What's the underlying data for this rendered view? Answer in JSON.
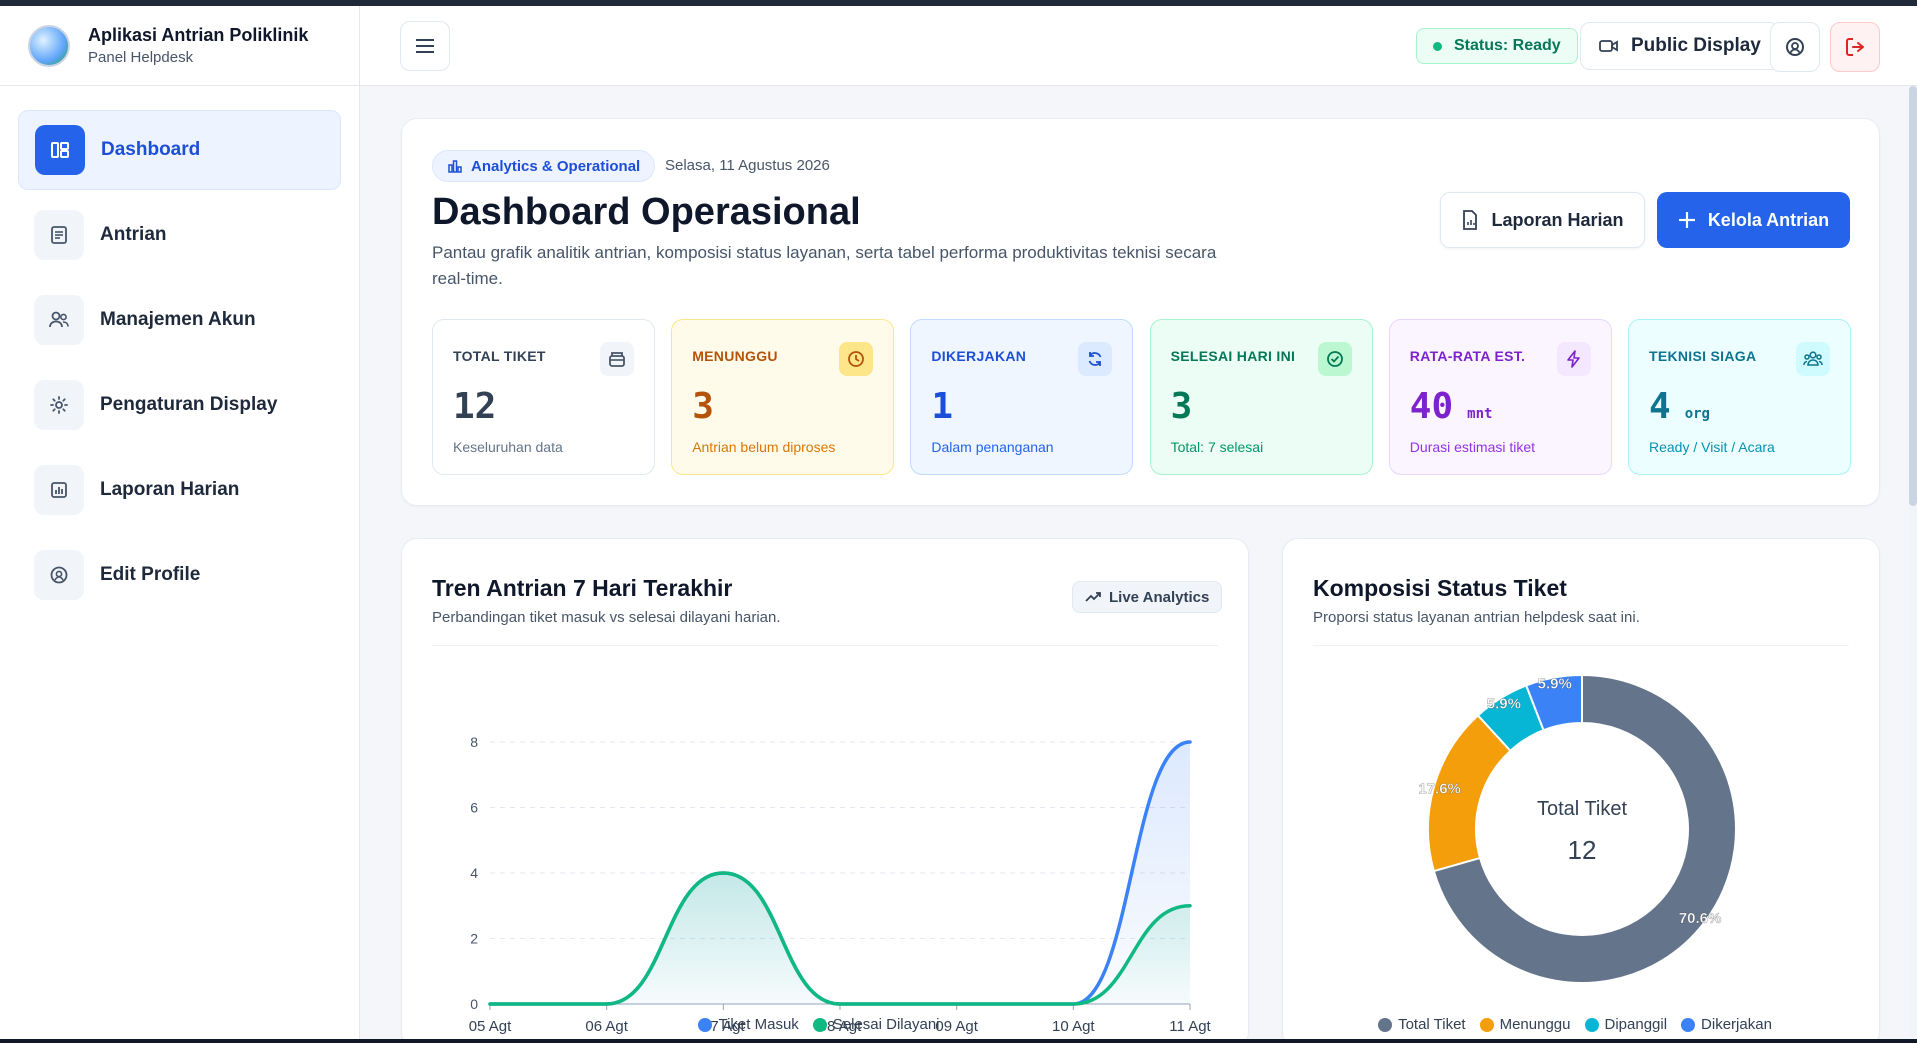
{
  "app": {
    "title": "Aplikasi Antrian Poliklinik",
    "subtitle": "Panel Helpdesk"
  },
  "sidebar": {
    "items": [
      {
        "label": "Dashboard",
        "icon": "dashboard-icon",
        "active": true
      },
      {
        "label": "Antrian",
        "icon": "list-icon"
      },
      {
        "label": "Manajemen Akun",
        "icon": "users-icon"
      },
      {
        "label": "Pengaturan Display",
        "icon": "gear-icon"
      },
      {
        "label": "Laporan Harian",
        "icon": "report-icon"
      },
      {
        "label": "Edit Profile",
        "icon": "profile-icon"
      }
    ]
  },
  "topbar": {
    "status": "Status: Ready",
    "public_display": "Public Display"
  },
  "hero": {
    "chip": "Analytics & Operational",
    "date": "Selasa, 11 Agustus 2026",
    "title": "Dashboard Operasional",
    "description": "Pantau grafik analitik antrian, komposisi status layanan, serta tabel performa produktivitas teknisi secara real-time.",
    "btn_report": "Laporan Harian",
    "btn_manage": "Kelola Antrian"
  },
  "stats": [
    {
      "label": "TOTAL TIKET",
      "value": "12",
      "unit": "",
      "sub": "Keseluruhan data",
      "color": "#334155",
      "subcolor": "#64748b",
      "bg": "#ffffff",
      "border": "#e2e8f0",
      "iconbg": "#f1f5f9",
      "icon": "archive-icon"
    },
    {
      "label": "MENUNGGU",
      "value": "3",
      "unit": "",
      "sub": "Antrian belum diproses",
      "color": "#b45309",
      "subcolor": "#d97706",
      "bg": "#fffbeb",
      "border": "#fde68a",
      "iconbg": "#fde68a",
      "icon": "clock-icon"
    },
    {
      "label": "DIKERJAKAN",
      "value": "1",
      "unit": "",
      "sub": "Dalam penanganan",
      "color": "#1d4ed8",
      "subcolor": "#2563eb",
      "bg": "#eff6ff",
      "border": "#bfdbfe",
      "iconbg": "#dbeafe",
      "icon": "refresh-icon"
    },
    {
      "label": "SELESAI HARI INI",
      "value": "3",
      "unit": "",
      "sub": "Total: 7 selesai",
      "color": "#047857",
      "subcolor": "#059669",
      "bg": "#ecfdf5",
      "border": "#a7f3d0",
      "iconbg": "#bbf7d0",
      "icon": "check-circle-icon"
    },
    {
      "label": "RATA-RATA EST.",
      "value": "40",
      "unit": "mnt",
      "sub": "Durasi estimasi tiket",
      "color": "#7e22ce",
      "subcolor": "#9333ea",
      "bg": "#faf5ff",
      "border": "#e9d5ff",
      "iconbg": "#f3e8ff",
      "icon": "bolt-icon"
    },
    {
      "label": "TEKNISI SIAGA",
      "value": "4",
      "unit": "org",
      "sub": "Ready / Visit / Acara",
      "color": "#0e7490",
      "subcolor": "#0891b2",
      "bg": "#ecfeff",
      "border": "#a5f3fc",
      "iconbg": "#cffafe",
      "icon": "team-icon"
    }
  ],
  "trend": {
    "title": "Tren Antrian 7 Hari Terakhir",
    "subtitle": "Perbandingan tiket masuk vs selesai dilayani harian.",
    "chip": "Live Analytics"
  },
  "composition": {
    "title": "Komposisi Status Tiket",
    "subtitle": "Proporsi status layanan antrian helpdesk saat ini.",
    "center_label": "Total Tiket",
    "center_value": "12"
  },
  "chart_data": [
    {
      "type": "area",
      "x": [
        "05 Agt",
        "06 Agt",
        "07 Agt",
        "08 Agt",
        "09 Agt",
        "10 Agt",
        "11 Agt"
      ],
      "series": [
        {
          "name": "Tiket Masuk",
          "values": [
            0,
            0,
            4,
            0,
            0,
            0,
            8
          ],
          "color": "#3b82f6"
        },
        {
          "name": "Selesai Dilayani",
          "values": [
            0,
            0,
            4,
            0,
            0,
            0,
            3
          ],
          "color": "#10b981"
        }
      ],
      "yticks": [
        0,
        2,
        4,
        6,
        8
      ],
      "ylim": [
        0,
        8
      ],
      "grid": true,
      "legend": "bottom"
    },
    {
      "type": "pie",
      "categories": [
        "Total Tiket",
        "Menunggu",
        "Dipanggil",
        "Dikerjakan"
      ],
      "values": [
        70.6,
        17.6,
        5.9,
        5.9
      ],
      "labels": [
        "70.6%",
        "17.6%",
        "5.9%",
        "5.9%"
      ],
      "colors": [
        "#64748b",
        "#f59e0b",
        "#06b6d4",
        "#3b82f6"
      ],
      "legend": "bottom"
    }
  ]
}
